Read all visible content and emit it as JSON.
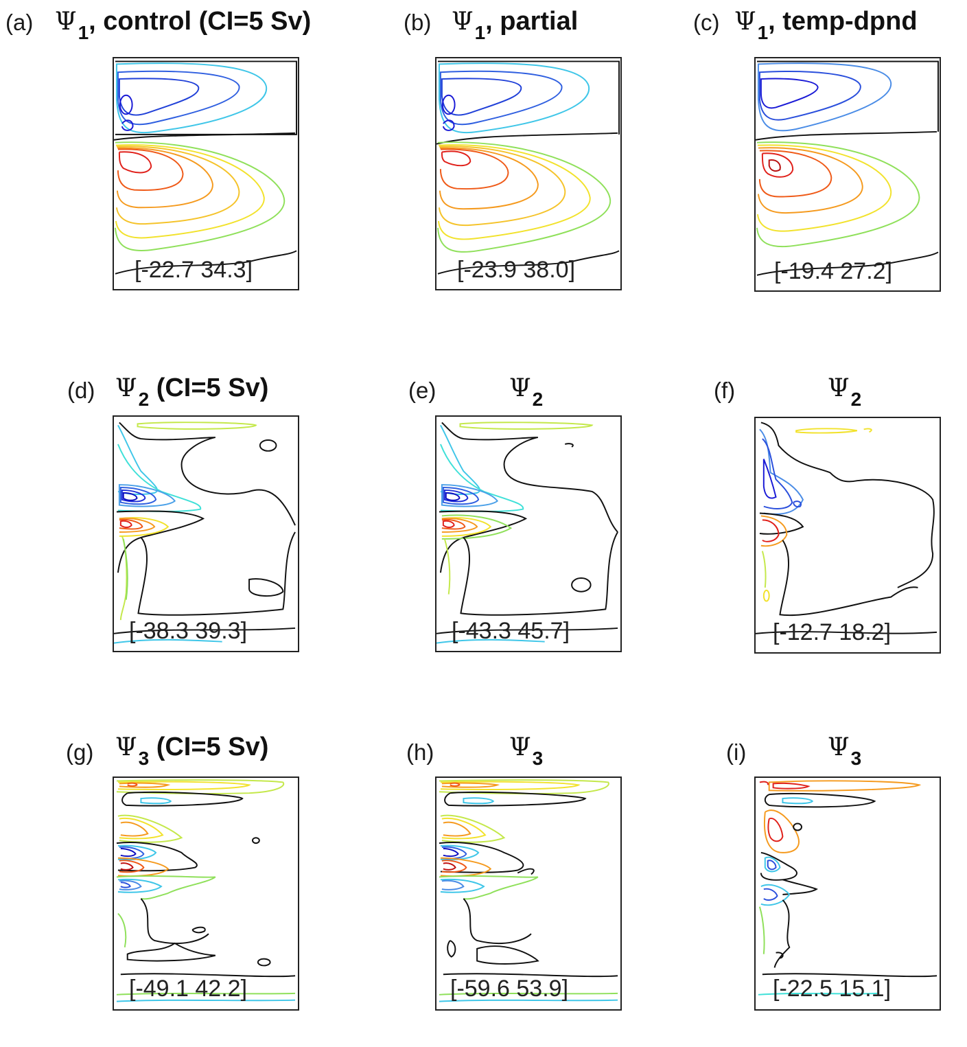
{
  "panels": [
    {
      "label": "(a)",
      "title_sub": "1",
      "title_suffix": ", control (CI=5 Sv)",
      "range": "[-22.7  34.3]"
    },
    {
      "label": "(b)",
      "title_sub": "1",
      "title_suffix": ", partial",
      "range": "[-23.9  38.0]"
    },
    {
      "label": "(c)",
      "title_sub": "1",
      "title_suffix": ", temp-dpnd",
      "range": "[-19.4  27.2]"
    },
    {
      "label": "(d)",
      "title_sub": "2",
      "title_suffix": " (CI=5 Sv)",
      "range": "[-38.3  39.3]"
    },
    {
      "label": "(e)",
      "title_sub": "2",
      "title_suffix": "",
      "range": "[-43.3  45.7]"
    },
    {
      "label": "(f)",
      "title_sub": "2",
      "title_suffix": "",
      "range": "[-12.7  18.2]"
    },
    {
      "label": "(g)",
      "title_sub": "3",
      "title_suffix": " (CI=5 Sv)",
      "range": "[-49.1  42.2]"
    },
    {
      "label": "(h)",
      "title_sub": "3",
      "title_suffix": "",
      "range": "[-59.6  53.9]"
    },
    {
      "label": "(i)",
      "title_sub": "3",
      "title_suffix": "",
      "range": "[-22.5  15.1]"
    }
  ],
  "psi_symbol": "Ψ",
  "colors": {
    "strong_negative": "#1a1ad6",
    "negative": "#2f5fe0",
    "weak_negative": "#3fc6e8",
    "zero": "#111111",
    "weak_positive": "#8fe05a",
    "positive_yellow": "#f2e22c",
    "positive_orange": "#f59a1e",
    "strong_positive": "#e0201a"
  }
}
